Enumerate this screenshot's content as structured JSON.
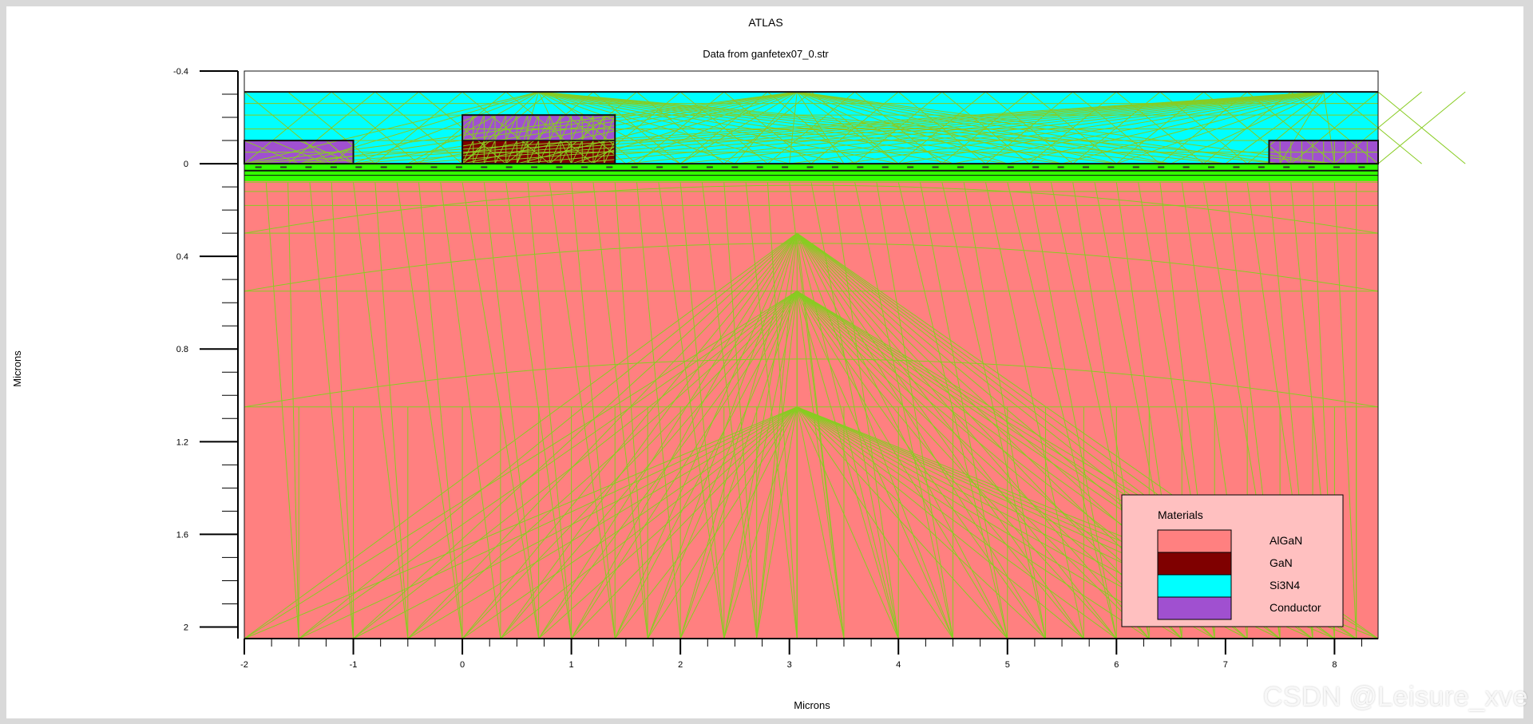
{
  "chart_data": {
    "type": "heatmap",
    "title": "ATLAS",
    "subtitle": "Data from ganfetex07_0.str",
    "xlabel": "Microns",
    "ylabel": "Microns",
    "xlim": [
      -2,
      8.4
    ],
    "ylim": [
      -0.4,
      2.05
    ],
    "y_inverted": true,
    "x_ticks": [
      -2,
      -1,
      0,
      1,
      2,
      3,
      4,
      5,
      6,
      7,
      8
    ],
    "y_ticks": [
      -0.4,
      0,
      0.4,
      0.8,
      1.2,
      1.6,
      2
    ],
    "y_tick_labels": [
      "-0.4",
      "0",
      "0.4",
      "0.8",
      "1.2",
      "1.6",
      "2"
    ],
    "grid": false,
    "legend_placement": "bottom-right",
    "regions": [
      {
        "material": "AlGaN",
        "x": [
          -2,
          8.4
        ],
        "y": [
          0.06,
          2.05
        ]
      },
      {
        "material": "AlGaN",
        "x": [
          -2,
          8.4
        ],
        "y": [
          0.03,
          0.06
        ]
      },
      {
        "material": "Si3N4",
        "x": [
          -2,
          8.4
        ],
        "y": [
          -0.31,
          0.0
        ]
      },
      {
        "material": "Conductor",
        "x": [
          -2,
          -1
        ],
        "y": [
          -0.1,
          0.0
        ]
      },
      {
        "material": "Conductor",
        "x": [
          0,
          1.4
        ],
        "y": [
          -0.21,
          -0.1
        ]
      },
      {
        "material": "GaN",
        "x": [
          0,
          1.4
        ],
        "y": [
          -0.1,
          0.0
        ]
      },
      {
        "material": "Conductor",
        "x": [
          7.4,
          8.4
        ],
        "y": [
          -0.1,
          0.0
        ]
      }
    ]
  },
  "legend": {
    "title": "Materials",
    "items": [
      {
        "name": "AlGaN",
        "color": "#ff8080"
      },
      {
        "name": "GaN",
        "color": "#7f0000"
      },
      {
        "name": "Si3N4",
        "color": "#00ffff"
      },
      {
        "name": "Conductor",
        "color": "#a050d0"
      }
    ]
  },
  "colors": {
    "mesh": "#88cc22",
    "green_band": "#33ff00",
    "dark_line": "#111111"
  },
  "watermark": "CSDN @Leisure_xve"
}
